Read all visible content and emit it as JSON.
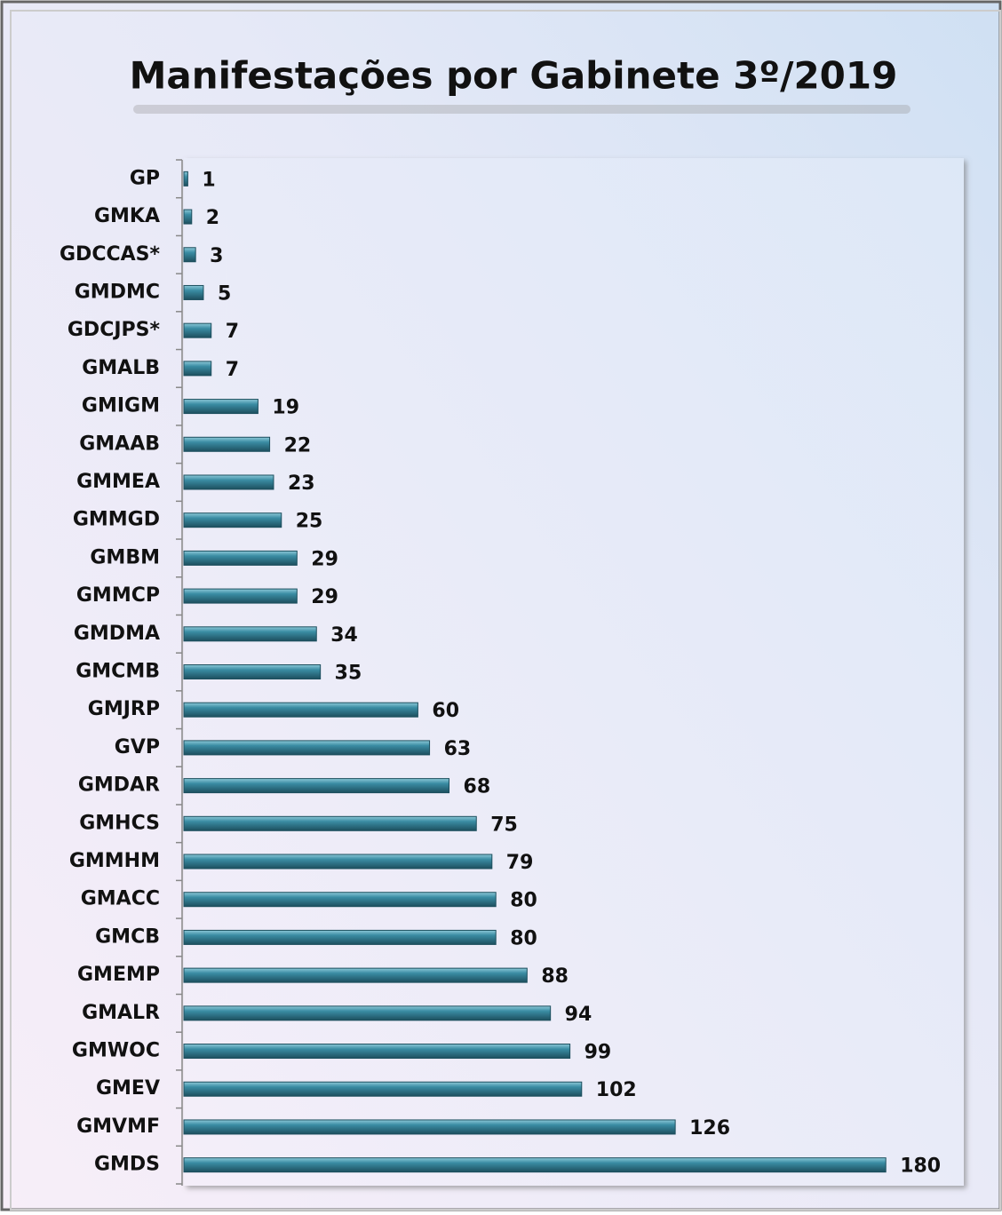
{
  "chart_data": {
    "type": "bar",
    "orientation": "horizontal",
    "title": "Manifestações por Gabinete 3º/2019",
    "categories": [
      "GP",
      "GMKA",
      "GDCCAS*",
      "GMDMC",
      "GDCJPS*",
      "GMALB",
      "GMIGM",
      "GMAAB",
      "GMMEA",
      "GMMGD",
      "GMBM",
      "GMMCP",
      "GMDMA",
      "GMCMB",
      "GMJRP",
      "GVP",
      "GMDAR",
      "GMHCS",
      "GMMHM",
      "GMACC",
      "GMCB",
      "GMEMP",
      "GMALR",
      "GMWOC",
      "GMEV",
      "GMVMF",
      "GMDS"
    ],
    "values": [
      1,
      2,
      3,
      5,
      7,
      7,
      19,
      22,
      23,
      25,
      29,
      29,
      34,
      35,
      60,
      63,
      68,
      75,
      79,
      80,
      80,
      88,
      94,
      99,
      102,
      126,
      180
    ],
    "color": "#3a8ca3",
    "xlim": [
      0,
      200
    ]
  }
}
